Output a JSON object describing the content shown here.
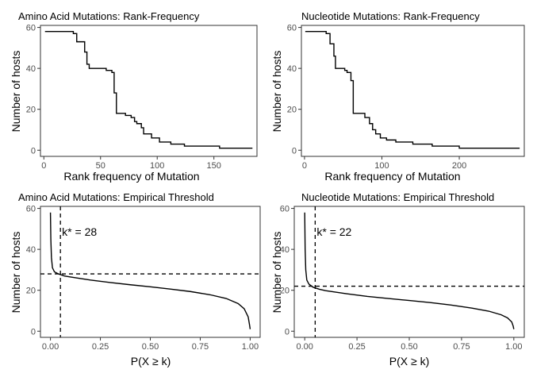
{
  "chart_data": [
    {
      "type": "line",
      "title": "Amino Acid Mutations: Rank-Frequency",
      "xlabel": "Rank frequency of Mutation",
      "ylabel": "Number of hosts",
      "xlim": [
        -3,
        188
      ],
      "ylim": [
        -3,
        61
      ],
      "xticks": [
        0,
        50,
        100,
        150
      ],
      "yticks": [
        0,
        20,
        40,
        60
      ],
      "grid": false,
      "series": [
        {
          "step": true,
          "x": [
            1,
            26,
            29,
            36,
            38,
            40,
            55,
            60,
            62,
            64,
            72,
            77,
            80,
            82,
            86,
            88,
            95,
            102,
            112,
            122,
            124,
            142,
            155,
            184
          ],
          "y": [
            58,
            57,
            53,
            48,
            42,
            40,
            39,
            38,
            28,
            18,
            17,
            16,
            14,
            13,
            11,
            8,
            6,
            4,
            3,
            3,
            2,
            2,
            1,
            1
          ]
        }
      ]
    },
    {
      "type": "line",
      "title": "Nucleotide Mutations: Rank-Frequency",
      "xlabel": "Rank frequency of Mutation",
      "ylabel": "Number of hosts",
      "xlim": [
        -4,
        284
      ],
      "ylim": [
        -3,
        61
      ],
      "xticks": [
        0,
        100,
        200
      ],
      "yticks": [
        0,
        20,
        40,
        60
      ],
      "grid": false,
      "series": [
        {
          "step": true,
          "x": [
            1,
            28,
            33,
            38,
            40,
            52,
            55,
            60,
            63,
            78,
            84,
            88,
            92,
            98,
            106,
            118,
            140,
            165,
            195,
            200,
            225,
            278
          ],
          "y": [
            58,
            57,
            52,
            46,
            40,
            39,
            38,
            34,
            18,
            16,
            13,
            10,
            8,
            6,
            5,
            4,
            3,
            2,
            2,
            1,
            1,
            1
          ]
        }
      ]
    },
    {
      "type": "line",
      "title": "Amino Acid Mutations: Empirical Threshold",
      "xlabel": "P(X ≥ k)",
      "ylabel": "Number of hosts",
      "xlim": [
        -0.05,
        1.05
      ],
      "ylim": [
        -3,
        61
      ],
      "xticks": [
        0.0,
        0.25,
        0.5,
        0.75,
        1.0
      ],
      "xtick_labels": [
        "0.00",
        "0.25",
        "0.50",
        "0.75",
        "1.00"
      ],
      "yticks": [
        0,
        20,
        40,
        60
      ],
      "grid": false,
      "series": [
        {
          "x": [
            0.0,
            0.002,
            0.005,
            0.01,
            0.02,
            0.04,
            0.07,
            0.1,
            0.2,
            0.3,
            0.4,
            0.5,
            0.6,
            0.7,
            0.8,
            0.88,
            0.94,
            0.97,
            0.99,
            0.997,
            1.0
          ],
          "y": [
            58,
            45,
            36,
            31,
            29,
            28,
            27,
            26.5,
            25,
            23.8,
            22.7,
            21.7,
            20.6,
            19.4,
            17.8,
            16,
            13.5,
            11,
            7,
            3,
            1
          ]
        }
      ],
      "threshold": {
        "k": 28,
        "p": 0.05,
        "label": "k* = 28"
      }
    },
    {
      "type": "line",
      "title": "Nucleotide Mutations: Empirical Threshold",
      "xlabel": "P(X ≥ k)",
      "ylabel": "Number of hosts",
      "xlim": [
        -0.05,
        1.05
      ],
      "ylim": [
        -3,
        61
      ],
      "xticks": [
        0.0,
        0.25,
        0.5,
        0.75,
        1.0
      ],
      "xtick_labels": [
        "0.00",
        "0.25",
        "0.50",
        "0.75",
        "1.00"
      ],
      "yticks": [
        0,
        20,
        40,
        60
      ],
      "grid": false,
      "series": [
        {
          "x": [
            0.0,
            0.002,
            0.005,
            0.01,
            0.02,
            0.04,
            0.07,
            0.1,
            0.2,
            0.3,
            0.4,
            0.5,
            0.6,
            0.7,
            0.8,
            0.88,
            0.94,
            0.97,
            0.99,
            0.997,
            1.0
          ],
          "y": [
            58,
            40,
            30,
            25,
            23,
            21.5,
            20.5,
            19.8,
            18.3,
            17,
            16,
            15,
            14,
            12.8,
            11.3,
            9.8,
            8,
            6.5,
            4.5,
            2.5,
            1
          ]
        }
      ],
      "threshold": {
        "k": 22,
        "p": 0.05,
        "label": "k* = 22"
      }
    }
  ]
}
